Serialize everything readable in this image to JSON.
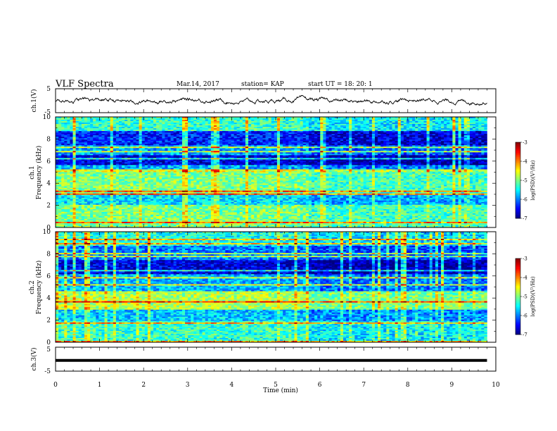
{
  "header": {
    "title": "VLF Spectra",
    "date": "Mar.14, 2017",
    "station": "station= KAP",
    "start": "start  UT =  18: 20: 1"
  },
  "chart_data": [
    {
      "type": "line",
      "ylabel": "ch.1(V)",
      "ylim": [
        -5,
        5
      ],
      "yticks": [
        "5",
        "-5"
      ],
      "xlim": [
        0,
        10
      ],
      "description_series": "noisy waveform ~ -1 to 1 V over 0–9.8 min"
    },
    {
      "type": "heatmap",
      "ylabel_line1": "ch.1",
      "ylabel_line2": "Frequency (kHz)",
      "ylim": [
        0,
        10
      ],
      "yticks": [
        "0",
        "2",
        "4",
        "6",
        "8",
        "10"
      ],
      "xlim": [
        0,
        10
      ],
      "data_end_min": 9.8,
      "colorbar": {
        "label": "log(PSD)(V²/Hz)",
        "range": [
          -7,
          -3
        ],
        "ticks": [
          "-3",
          "-4",
          "-5",
          "-6",
          "-7"
        ]
      },
      "bands_khz": [
        {
          "from": 0.0,
          "to": 2.0,
          "level": -5.0
        },
        {
          "from": 2.0,
          "to": 3.0,
          "level": -5.6
        },
        {
          "from": 3.0,
          "to": 5.0,
          "level": -5.0
        },
        {
          "from": 5.0,
          "to": 5.7,
          "level": -5.8
        },
        {
          "from": 5.7,
          "to": 6.6,
          "level": -6.6
        },
        {
          "from": 6.6,
          "to": 7.4,
          "level": -5.9
        },
        {
          "from": 7.4,
          "to": 8.7,
          "level": -6.4
        },
        {
          "from": 8.7,
          "to": 10.0,
          "level": -5.3
        }
      ]
    },
    {
      "type": "heatmap",
      "ylabel_line1": "ch.2",
      "ylabel_line2": "Frequency (kHz)",
      "ylim": [
        0,
        10
      ],
      "yticks": [
        "0",
        "2",
        "4",
        "6",
        "8",
        "10"
      ],
      "xlim": [
        0,
        10
      ],
      "data_end_min": 9.8,
      "colorbar": {
        "label": "log(PSD)(V²/Hz)",
        "range": [
          -7,
          -3
        ],
        "ticks": [
          "-3",
          "-4",
          "-5",
          "-6",
          "-7"
        ]
      },
      "bands_khz": [
        {
          "from": 0.0,
          "to": 1.9,
          "level": -5.3
        },
        {
          "from": 1.9,
          "to": 3.0,
          "level": -5.7
        },
        {
          "from": 3.0,
          "to": 4.6,
          "level": -4.8
        },
        {
          "from": 4.6,
          "to": 6.2,
          "level": -5.8
        },
        {
          "from": 6.2,
          "to": 7.5,
          "level": -6.6
        },
        {
          "from": 7.5,
          "to": 8.7,
          "level": -6.0
        },
        {
          "from": 8.7,
          "to": 10.0,
          "level": -5.4
        }
      ]
    },
    {
      "type": "line",
      "ylabel": "ch.3(V)",
      "ylim": [
        -5,
        5
      ],
      "yticks": [
        "5",
        "-5"
      ],
      "xlim": [
        0,
        10
      ],
      "constant_value": -0.5,
      "xlabel": "Time  (min)",
      "xticks": [
        "0",
        "1",
        "2",
        "3",
        "4",
        "5",
        "6",
        "7",
        "8",
        "9",
        "10"
      ]
    }
  ]
}
